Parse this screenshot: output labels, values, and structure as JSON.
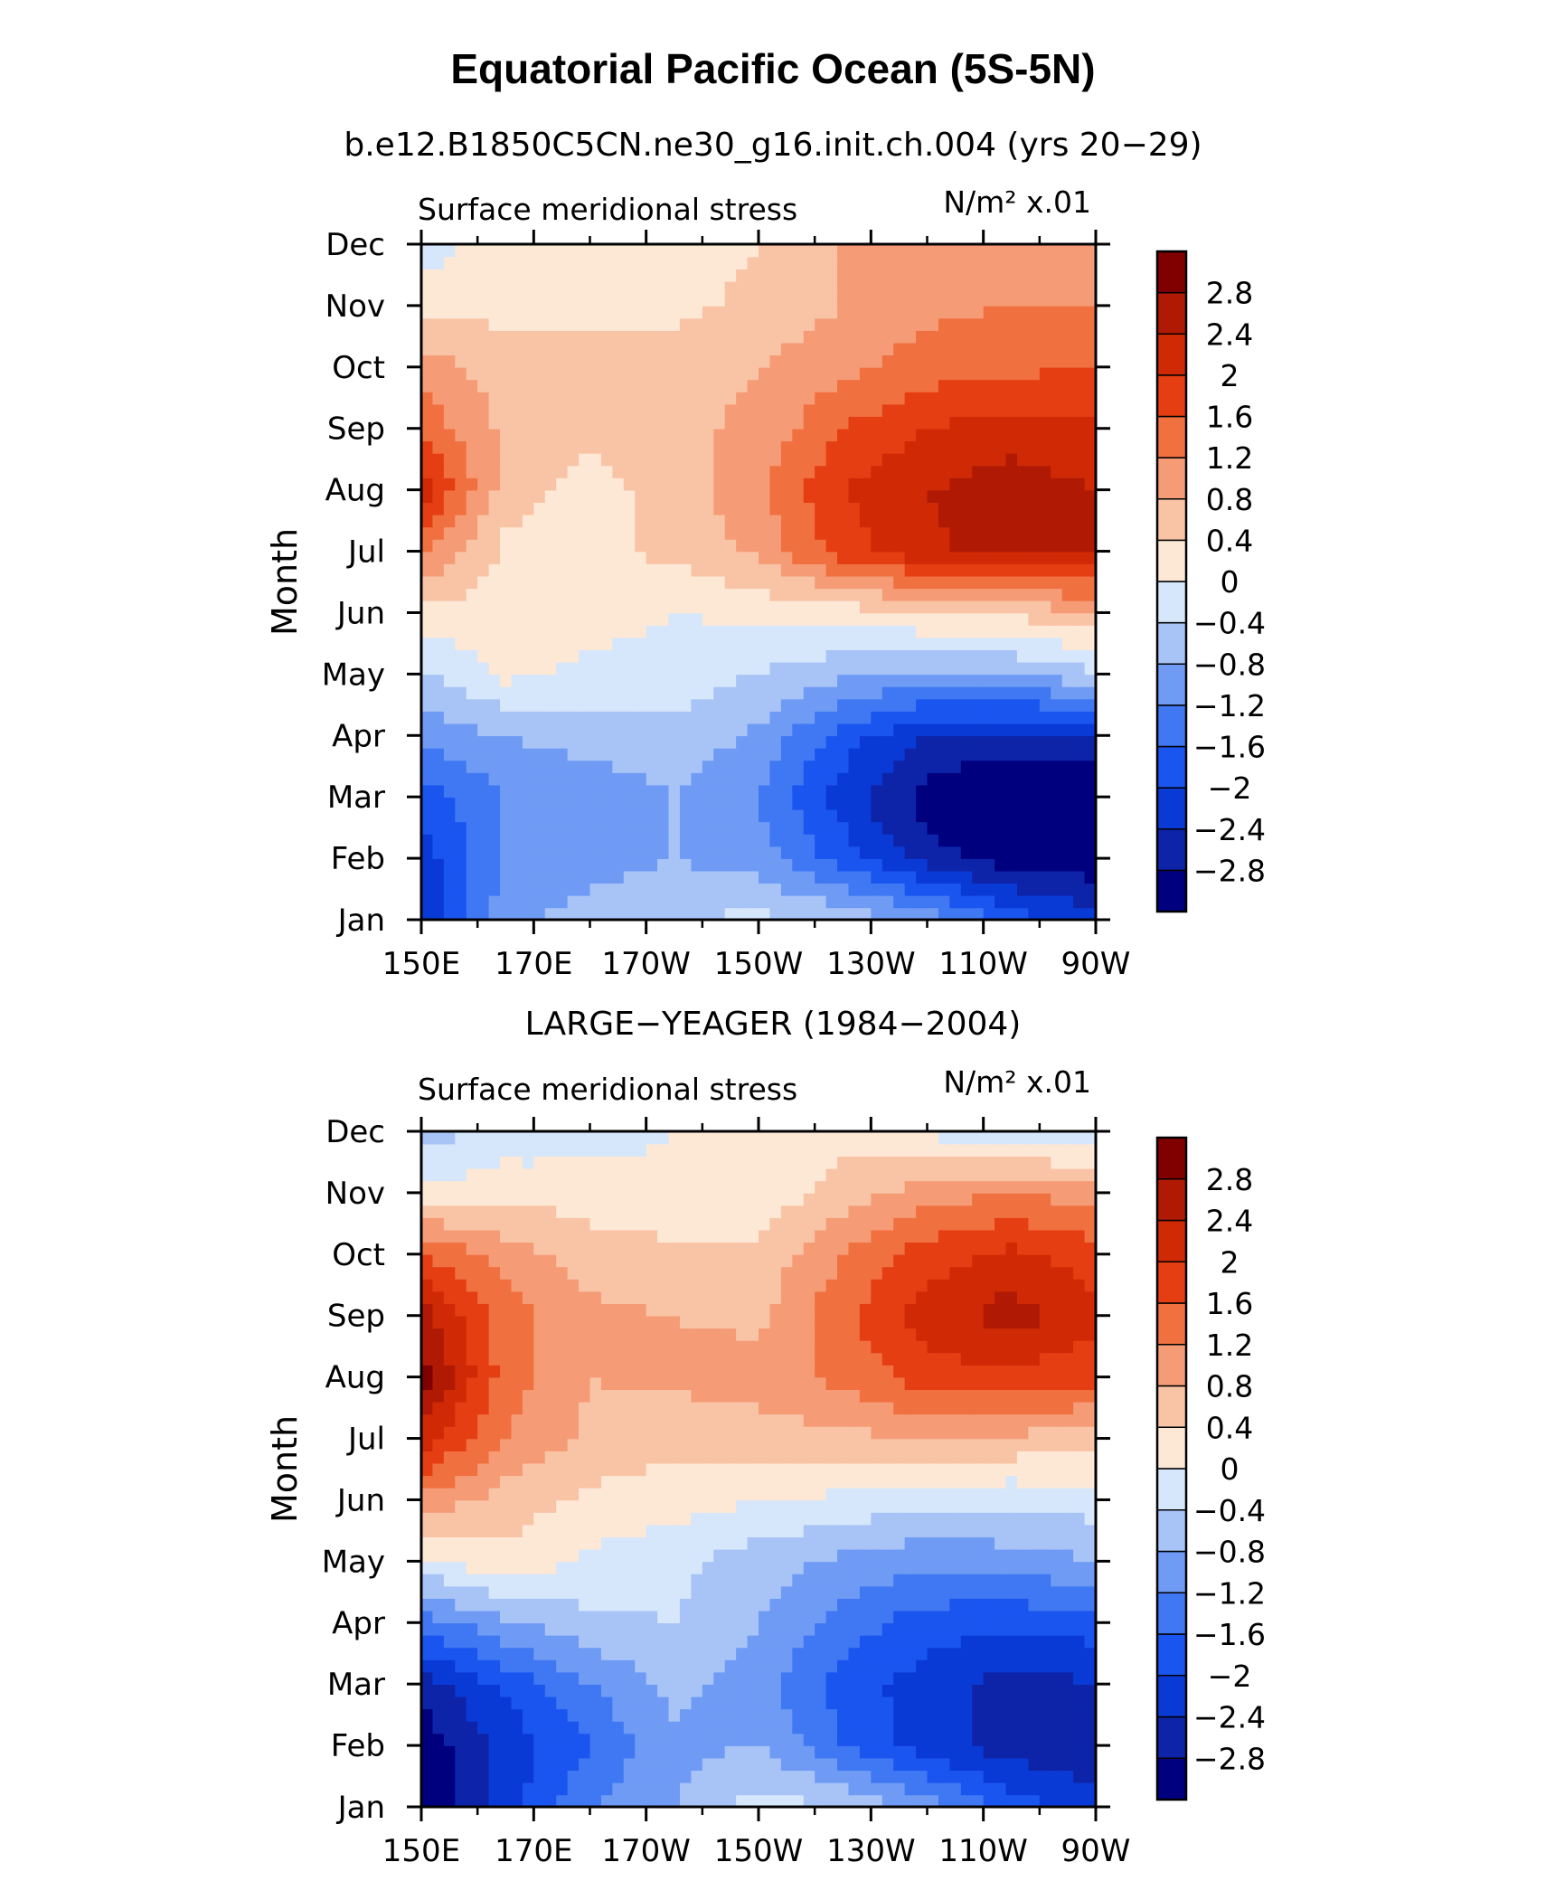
{
  "figure": {
    "title": "Equatorial Pacific Ocean (5S-5N)"
  },
  "colorscale": {
    "levels": [
      "-2.8",
      "-2.4",
      "-2",
      "-1.6",
      "-1.2",
      "-0.8",
      "-0.4",
      "0",
      "0.4",
      "0.8",
      "1.2",
      "1.6",
      "2",
      "2.4",
      "2.8"
    ],
    "colors": [
      "#00007f",
      "#0d24a8",
      "#0a3ad6",
      "#1a55f0",
      "#3f78f2",
      "#6f9bf5",
      "#a8c4f7",
      "#d6e6fb",
      "#fde8d6",
      "#f9c4a6",
      "#f59c77",
      "#f07040",
      "#e43e12",
      "#cf2a05",
      "#b01a05",
      "#800000"
    ]
  },
  "chart_data": [
    {
      "type": "heatmap",
      "subtitle": "b.e12.B1850C5CN.ne30_g16.init.ch.004 (yrs 20−29)",
      "left_string": "Surface meridional stress",
      "right_string": "N/m² x.01",
      "ylabel": "Month",
      "xlabel": "",
      "x_ticks": [
        "150E",
        "170E",
        "170W",
        "150W",
        "130W",
        "110W",
        "90W"
      ],
      "x_tick_lons": [
        150,
        170,
        190,
        210,
        230,
        250,
        270
      ],
      "xlim": [
        150,
        270
      ],
      "y_ticks": [
        "Jan",
        "Feb",
        "Mar",
        "Apr",
        "May",
        "Jun",
        "Jul",
        "Aug",
        "Sep",
        "Oct",
        "Nov",
        "Dec"
      ],
      "grid_lons": [
        150,
        165,
        180,
        195,
        210,
        225,
        240,
        255,
        270
      ],
      "values": [
        [
          -2.3,
          -0.9,
          -0.6,
          -0.4,
          -0.3,
          -0.5,
          -0.9,
          -1.8,
          -2.2
        ],
        [
          -2.2,
          -1.2,
          -1.0,
          -0.8,
          -1.0,
          -1.8,
          -2.6,
          -3.0,
          -3.1
        ],
        [
          -1.8,
          -1.2,
          -1.1,
          -0.8,
          -1.2,
          -2.2,
          -3.0,
          -3.4,
          -3.3
        ],
        [
          -1.1,
          -0.8,
          -0.6,
          -0.5,
          -0.9,
          -1.8,
          -2.4,
          -2.5,
          -2.5
        ],
        [
          -0.5,
          0.1,
          -0.1,
          -0.2,
          -0.4,
          -0.7,
          -0.9,
          -0.8,
          -0.5
        ],
        [
          0.3,
          0.2,
          0.2,
          0.0,
          0.1,
          0.2,
          0.4,
          0.5,
          0.7
        ],
        [
          1.3,
          0.3,
          0.3,
          0.5,
          0.9,
          1.8,
          2.3,
          2.6,
          2.5
        ],
        [
          2.2,
          0.6,
          0.2,
          0.6,
          1.1,
          2.0,
          2.4,
          2.6,
          2.4
        ],
        [
          1.5,
          0.7,
          0.5,
          0.7,
          0.9,
          1.6,
          2.0,
          2.2,
          2.1
        ],
        [
          1.0,
          0.6,
          0.6,
          0.6,
          0.8,
          1.1,
          1.4,
          1.5,
          1.6
        ],
        [
          0.2,
          0.3,
          0.3,
          0.3,
          0.5,
          0.8,
          1.1,
          1.2,
          1.2
        ],
        [
          -0.2,
          0.2,
          0.2,
          0.2,
          0.4,
          0.8,
          1.0,
          1.0,
          0.9
        ]
      ]
    },
    {
      "type": "heatmap",
      "subtitle": "LARGE−YEAGER (1984−2004)",
      "left_string": "Surface meridional stress",
      "right_string": "N/m² x.01",
      "ylabel": "Month",
      "xlabel": "",
      "x_ticks": [
        "150E",
        "170E",
        "170W",
        "150W",
        "130W",
        "110W",
        "90W"
      ],
      "x_tick_lons": [
        150,
        170,
        190,
        210,
        230,
        250,
        270
      ],
      "xlim": [
        150,
        270
      ],
      "y_ticks": [
        "Jan",
        "Feb",
        "Mar",
        "Apr",
        "May",
        "Jun",
        "Jul",
        "Aug",
        "Sep",
        "Oct",
        "Nov",
        "Dec"
      ],
      "grid_lons": [
        150,
        165,
        180,
        195,
        210,
        225,
        240,
        255,
        270
      ],
      "values": [
        [
          -3.2,
          -2.2,
          -1.2,
          -0.8,
          -0.2,
          -0.4,
          -1.0,
          -1.8,
          -2.2
        ],
        [
          -3.1,
          -2.3,
          -1.6,
          -0.9,
          -0.8,
          -1.6,
          -2.2,
          -2.6,
          -2.8
        ],
        [
          -2.6,
          -1.9,
          -1.2,
          -0.7,
          -1.0,
          -1.8,
          -2.2,
          -2.6,
          -2.4
        ],
        [
          -1.4,
          -0.9,
          -0.5,
          -0.4,
          -0.8,
          -1.4,
          -1.8,
          -1.9,
          -1.8
        ],
        [
          -0.1,
          0.3,
          -0.1,
          -0.3,
          -0.6,
          -0.9,
          -1.1,
          -1.0,
          -0.8
        ],
        [
          1.1,
          0.6,
          0.3,
          0.2,
          0.0,
          -0.1,
          -0.3,
          -0.3,
          -0.2
        ],
        [
          2.2,
          1.2,
          0.7,
          0.5,
          0.6,
          0.7,
          0.8,
          0.7,
          0.6
        ],
        [
          3.0,
          1.4,
          0.8,
          0.9,
          1.0,
          1.3,
          1.8,
          1.9,
          1.7
        ],
        [
          2.6,
          1.4,
          0.9,
          0.8,
          0.7,
          1.5,
          2.2,
          2.6,
          2.1
        ],
        [
          1.6,
          1.0,
          0.6,
          0.5,
          0.5,
          1.2,
          1.8,
          2.1,
          1.8
        ],
        [
          0.1,
          0.3,
          0.2,
          0.1,
          0.1,
          0.6,
          1.0,
          1.2,
          1.0
        ],
        [
          -0.6,
          -0.3,
          -0.2,
          0.0,
          0.2,
          0.2,
          -0.1,
          -0.2,
          -0.4
        ]
      ]
    }
  ]
}
